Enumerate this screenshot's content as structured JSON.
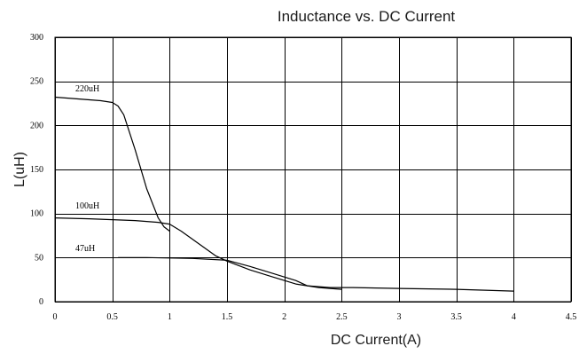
{
  "chart_data": {
    "type": "line",
    "title": "Inductance vs. DC Current",
    "xlabel": "DC Current(A)",
    "ylabel": "L(uH)",
    "xlim": [
      0,
      4.5
    ],
    "ylim": [
      0,
      300
    ],
    "x_ticks": [
      "0",
      "0.5",
      "1",
      "1.5",
      "2",
      "2.5",
      "3",
      "3.5",
      "4",
      "4.5"
    ],
    "y_ticks": [
      "0",
      "50",
      "100",
      "150",
      "200",
      "250",
      "300"
    ],
    "grid": true,
    "legend": "none",
    "series": [
      {
        "name": "220uH",
        "points": [
          [
            0,
            232
          ],
          [
            0.2,
            230
          ],
          [
            0.4,
            228
          ],
          [
            0.5,
            226
          ],
          [
            0.55,
            222
          ],
          [
            0.6,
            212
          ],
          [
            0.7,
            172
          ],
          [
            0.8,
            128
          ],
          [
            0.9,
            95
          ],
          [
            0.95,
            85
          ],
          [
            1.0,
            80
          ]
        ]
      },
      {
        "name": "100uH",
        "points": [
          [
            0,
            95
          ],
          [
            0.3,
            94
          ],
          [
            0.5,
            93
          ],
          [
            0.7,
            92
          ],
          [
            0.9,
            90
          ],
          [
            1.0,
            88
          ],
          [
            1.1,
            80
          ],
          [
            1.25,
            66
          ],
          [
            1.4,
            52
          ],
          [
            1.5,
            46
          ],
          [
            1.7,
            36
          ],
          [
            1.9,
            28
          ],
          [
            2.1,
            20
          ],
          [
            2.3,
            16
          ],
          [
            2.5,
            14
          ]
        ]
      },
      {
        "name": "47uH",
        "points": [
          [
            0.55,
            50
          ],
          [
            0.8,
            50
          ],
          [
            1.0,
            49.5
          ],
          [
            1.2,
            49
          ],
          [
            1.5,
            47
          ],
          [
            1.7,
            40
          ],
          [
            1.9,
            32
          ],
          [
            2.1,
            24
          ],
          [
            2.2,
            18
          ],
          [
            2.4,
            16
          ],
          [
            2.6,
            16
          ],
          [
            3.0,
            15
          ],
          [
            3.5,
            14
          ],
          [
            4.0,
            12
          ]
        ]
      }
    ]
  }
}
